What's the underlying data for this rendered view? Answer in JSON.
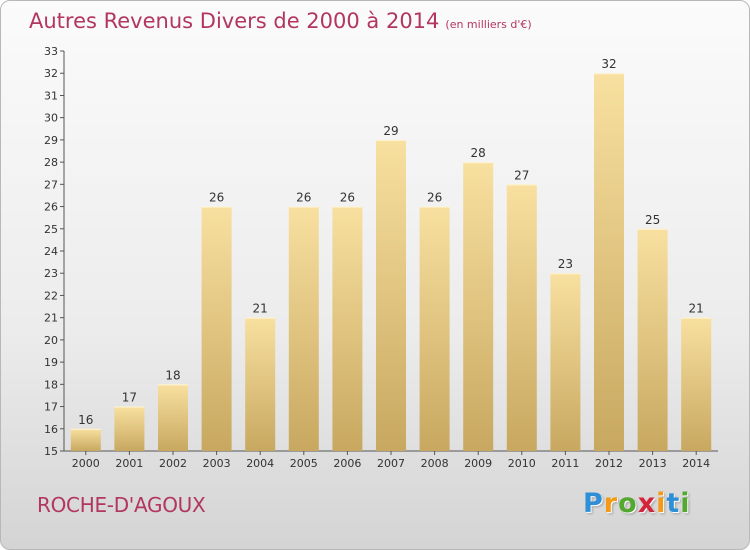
{
  "title": {
    "main": "Autres Revenus Divers de 2000 à 2014",
    "unit": "(en milliers d'€)"
  },
  "commune": "ROCHE-D'AGOUX",
  "logo": {
    "letters": [
      "P",
      "r",
      "o",
      "x",
      "i",
      "t",
      "i"
    ],
    "colors": [
      "#2f8fd6",
      "#f39a16",
      "#53a82f",
      "#d4233a",
      "#f39a16",
      "#2f8fd6",
      "#53a82f"
    ]
  },
  "chart_data": {
    "type": "bar",
    "title": "Autres Revenus Divers de 2000 à 2014",
    "subtitle": "(en milliers d'€)",
    "categories": [
      "2000",
      "2001",
      "2002",
      "2003",
      "2004",
      "2005",
      "2006",
      "2007",
      "2008",
      "2009",
      "2010",
      "2011",
      "2012",
      "2013",
      "2014"
    ],
    "values": [
      16,
      17,
      18,
      26,
      21,
      26,
      26,
      29,
      26,
      28,
      27,
      23,
      32,
      25,
      21
    ],
    "ylim": [
      15,
      33
    ],
    "yticks": [
      15,
      16,
      17,
      18,
      19,
      20,
      21,
      22,
      23,
      24,
      25,
      26,
      27,
      28,
      29,
      30,
      31,
      32,
      33
    ],
    "grid": false,
    "legend": "none",
    "bar_color_light": "#f8e0a0",
    "bar_color_dark": "#c8a860"
  }
}
